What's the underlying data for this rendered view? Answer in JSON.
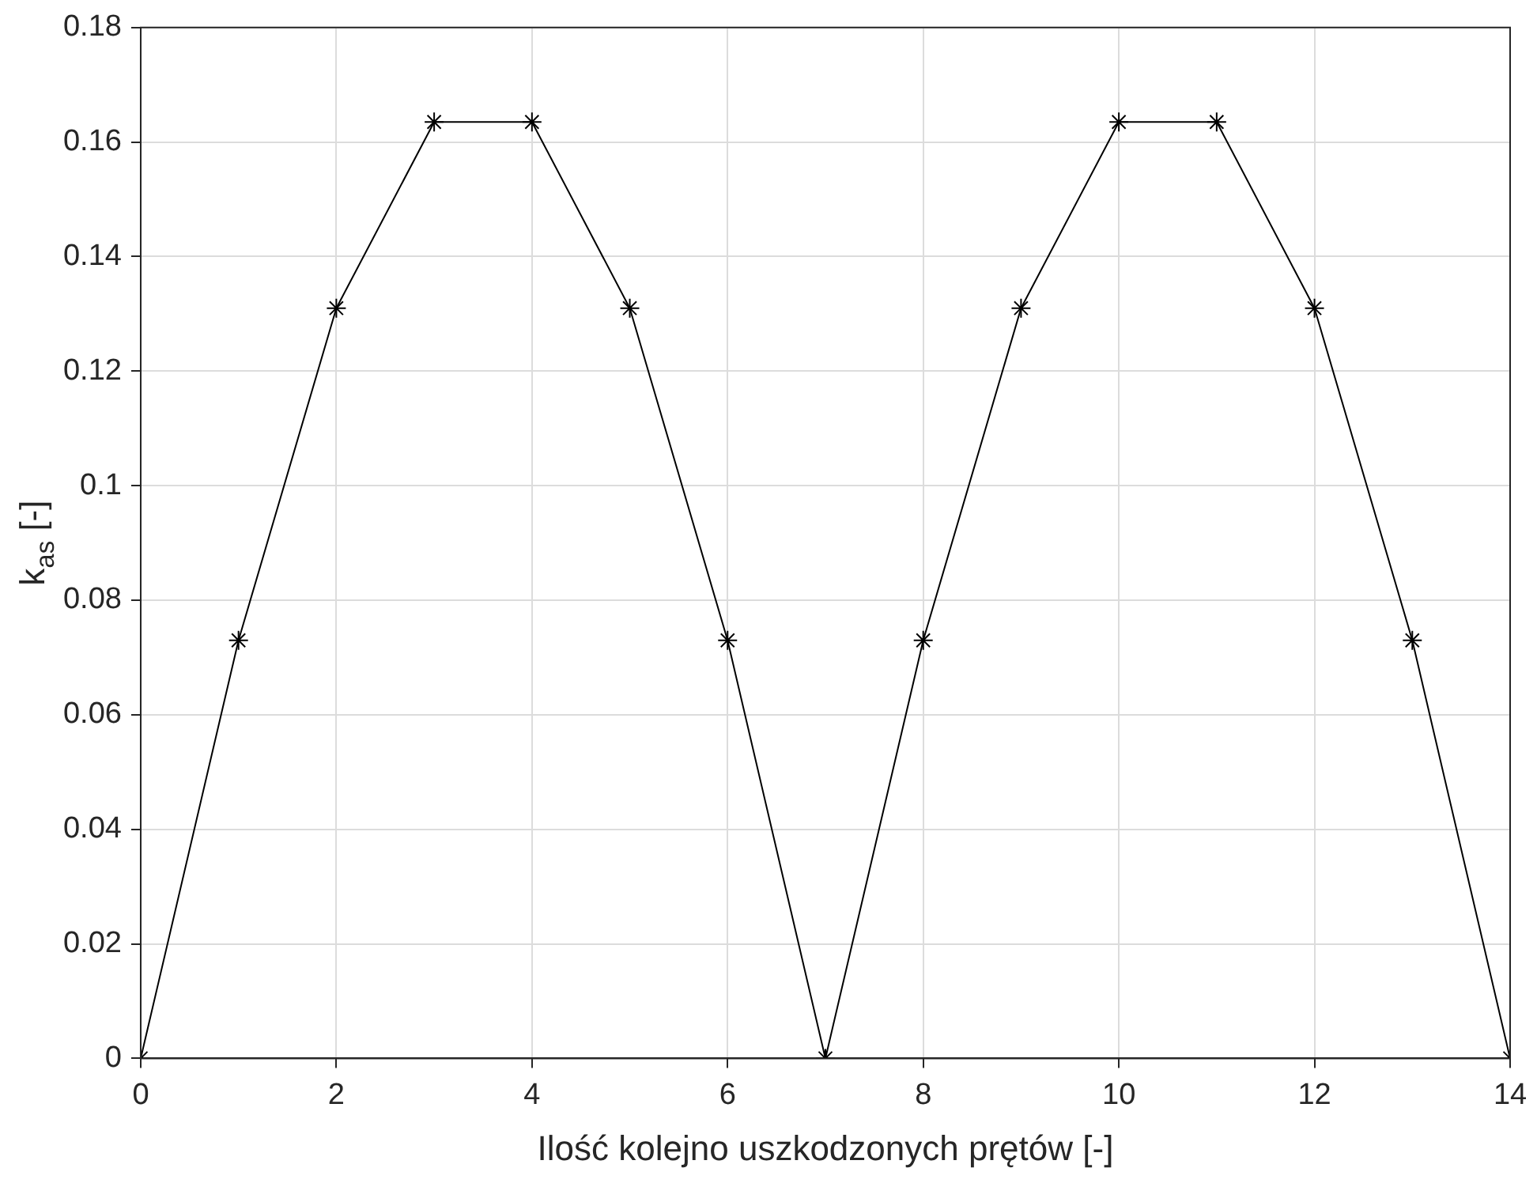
{
  "chart_data": {
    "type": "line",
    "xlabel": "Ilość kolejno uszkodzonych prętów [-]",
    "ylabel": "k$_{as}$ [-]",
    "x": [
      0,
      1,
      2,
      3,
      4,
      5,
      6,
      7,
      8,
      9,
      10,
      11,
      12,
      13,
      14
    ],
    "series": [
      {
        "color": "#000000",
        "values": [
          0,
          0.073,
          0.131,
          0.1635,
          0.1635,
          0.131,
          0.073,
          0,
          0.073,
          0.131,
          0.1635,
          0.1635,
          0.131,
          0.073,
          0
        ]
      }
    ],
    "xlim": [
      0,
      14
    ],
    "xticks": [
      0,
      2,
      4,
      6,
      8,
      10,
      12,
      14
    ],
    "ylim": [
      0,
      0.18
    ],
    "yticks": [
      0,
      0.02,
      0.04,
      0.06,
      0.08,
      0.1,
      0.12,
      0.14,
      0.16,
      0.18
    ],
    "grid": true,
    "marker": "cross",
    "line_style": "solid"
  }
}
